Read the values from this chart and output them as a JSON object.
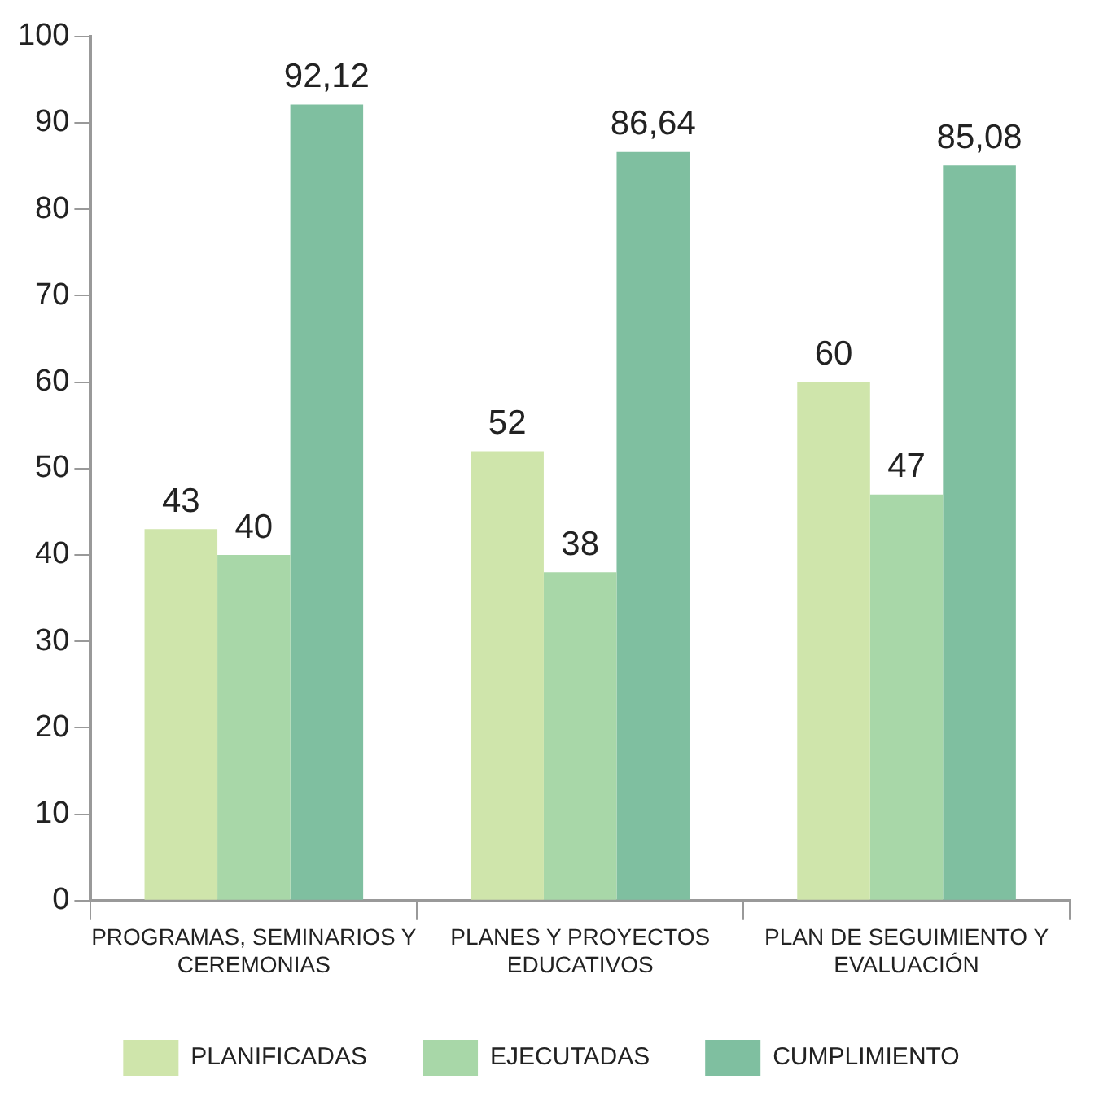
{
  "chart_data": {
    "type": "bar",
    "categories": [
      "PROGRAMAS, SEMINARIOS Y CEREMONIAS",
      "PLANES Y PROYECTOS EDUCATIVOS",
      "PLAN DE SEGUIMIENTO Y EVALUACIÓN"
    ],
    "series": [
      {
        "name": "PLANIFICADAS",
        "color": "#cfe5ab",
        "values": [
          43,
          52,
          60
        ]
      },
      {
        "name": "EJECUTADAS",
        "color": "#a8d7a8",
        "values": [
          40,
          38,
          47
        ]
      },
      {
        "name": "CUMPLIMIENTO",
        "color": "#7fbfa0",
        "values": [
          92.12,
          86.64,
          85.08
        ]
      }
    ],
    "value_labels": [
      [
        "43",
        "52",
        "60"
      ],
      [
        "40",
        "38",
        "47"
      ],
      [
        "92,12",
        "86,64",
        "85,08"
      ]
    ],
    "ylim": [
      0,
      100
    ],
    "yticks": [
      0,
      10,
      20,
      30,
      40,
      50,
      60,
      70,
      80,
      90,
      100
    ],
    "grid": false,
    "legend": "bottom"
  }
}
